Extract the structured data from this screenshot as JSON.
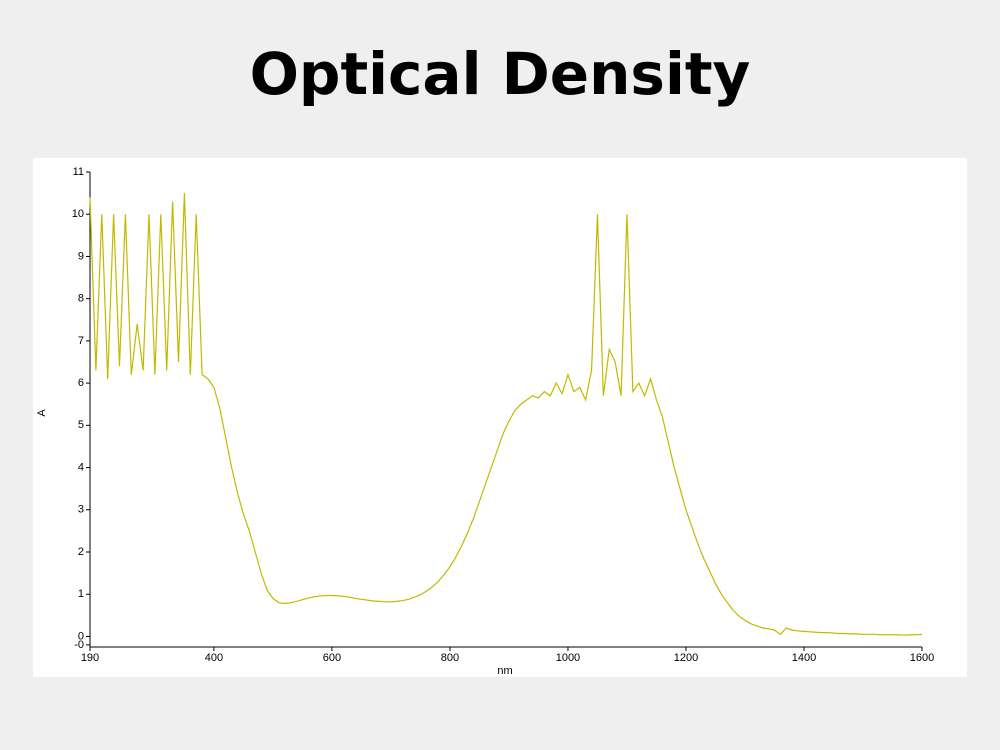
{
  "chart_data": {
    "type": "line",
    "title": "Optical Density",
    "xlabel": "nm",
    "ylabel": "A",
    "color": "#c2b900",
    "x": [
      190,
      200,
      210,
      220,
      230,
      240,
      250,
      260,
      270,
      280,
      290,
      300,
      310,
      320,
      330,
      340,
      350,
      360,
      370,
      380,
      390,
      400,
      410,
      420,
      430,
      440,
      450,
      460,
      470,
      480,
      490,
      500,
      510,
      520,
      530,
      540,
      550,
      560,
      570,
      580,
      590,
      600,
      610,
      620,
      630,
      640,
      650,
      660,
      670,
      680,
      690,
      700,
      710,
      720,
      730,
      740,
      750,
      760,
      770,
      780,
      790,
      800,
      810,
      820,
      830,
      840,
      850,
      860,
      870,
      880,
      890,
      900,
      910,
      920,
      930,
      940,
      950,
      960,
      970,
      980,
      990,
      1000,
      1010,
      1020,
      1030,
      1040,
      1050,
      1060,
      1070,
      1080,
      1090,
      1100,
      1110,
      1120,
      1130,
      1140,
      1150,
      1160,
      1170,
      1180,
      1190,
      1200,
      1210,
      1220,
      1230,
      1240,
      1250,
      1260,
      1270,
      1280,
      1290,
      1300,
      1310,
      1320,
      1330,
      1340,
      1350,
      1360,
      1370,
      1380,
      1390,
      1400,
      1410,
      1420,
      1430,
      1440,
      1450,
      1460,
      1470,
      1480,
      1490,
      1500,
      1510,
      1520,
      1530,
      1540,
      1550,
      1560,
      1570,
      1580,
      1590,
      1600
    ],
    "values": [
      10.4,
      6.3,
      10,
      6.1,
      10,
      6.4,
      10,
      6.2,
      7.4,
      6.3,
      10,
      6.2,
      10,
      6.3,
      10.3,
      6.5,
      10.5,
      6.2,
      10,
      6.2,
      6.1,
      5.9,
      5.4,
      4.7,
      4.0,
      3.4,
      2.9,
      2.5,
      2.0,
      1.5,
      1.1,
      0.9,
      0.8,
      0.78,
      0.8,
      0.83,
      0.87,
      0.91,
      0.94,
      0.96,
      0.97,
      0.97,
      0.96,
      0.95,
      0.93,
      0.9,
      0.88,
      0.86,
      0.84,
      0.83,
      0.82,
      0.82,
      0.83,
      0.85,
      0.88,
      0.93,
      0.99,
      1.07,
      1.17,
      1.3,
      1.46,
      1.65,
      1.88,
      2.15,
      2.46,
      2.8,
      3.2,
      3.6,
      4.0,
      4.4,
      4.8,
      5.1,
      5.35,
      5.5,
      5.6,
      5.7,
      5.65,
      5.8,
      5.7,
      6.0,
      5.75,
      6.2,
      5.8,
      5.9,
      5.6,
      6.3,
      10,
      5.7,
      6.8,
      6.5,
      5.7,
      10,
      5.8,
      6.0,
      5.7,
      6.1,
      5.6,
      5.2,
      4.6,
      4.0,
      3.5,
      3.0,
      2.6,
      2.2,
      1.85,
      1.55,
      1.25,
      1.0,
      0.8,
      0.62,
      0.48,
      0.38,
      0.3,
      0.25,
      0.2,
      0.18,
      0.15,
      0.05,
      0.2,
      0.15,
      0.13,
      0.12,
      0.11,
      0.1,
      0.09,
      0.09,
      0.08,
      0.07,
      0.07,
      0.06,
      0.06,
      0.05,
      0.05,
      0.05,
      0.04,
      0.04,
      0.04,
      0.04,
      0.03,
      0.04,
      0.04,
      0.05
    ],
    "xlim": [
      190,
      1600
    ],
    "xticks": [
      190,
      400,
      600,
      800,
      1000,
      1200,
      1400,
      1600
    ],
    "ylim": [
      -0.25,
      11
    ],
    "yticks": [
      {
        "value": -0.2,
        "label": "-0"
      },
      0,
      1,
      2,
      3,
      4,
      5,
      6,
      7,
      8,
      9,
      10,
      11
    ],
    "grid": false
  }
}
